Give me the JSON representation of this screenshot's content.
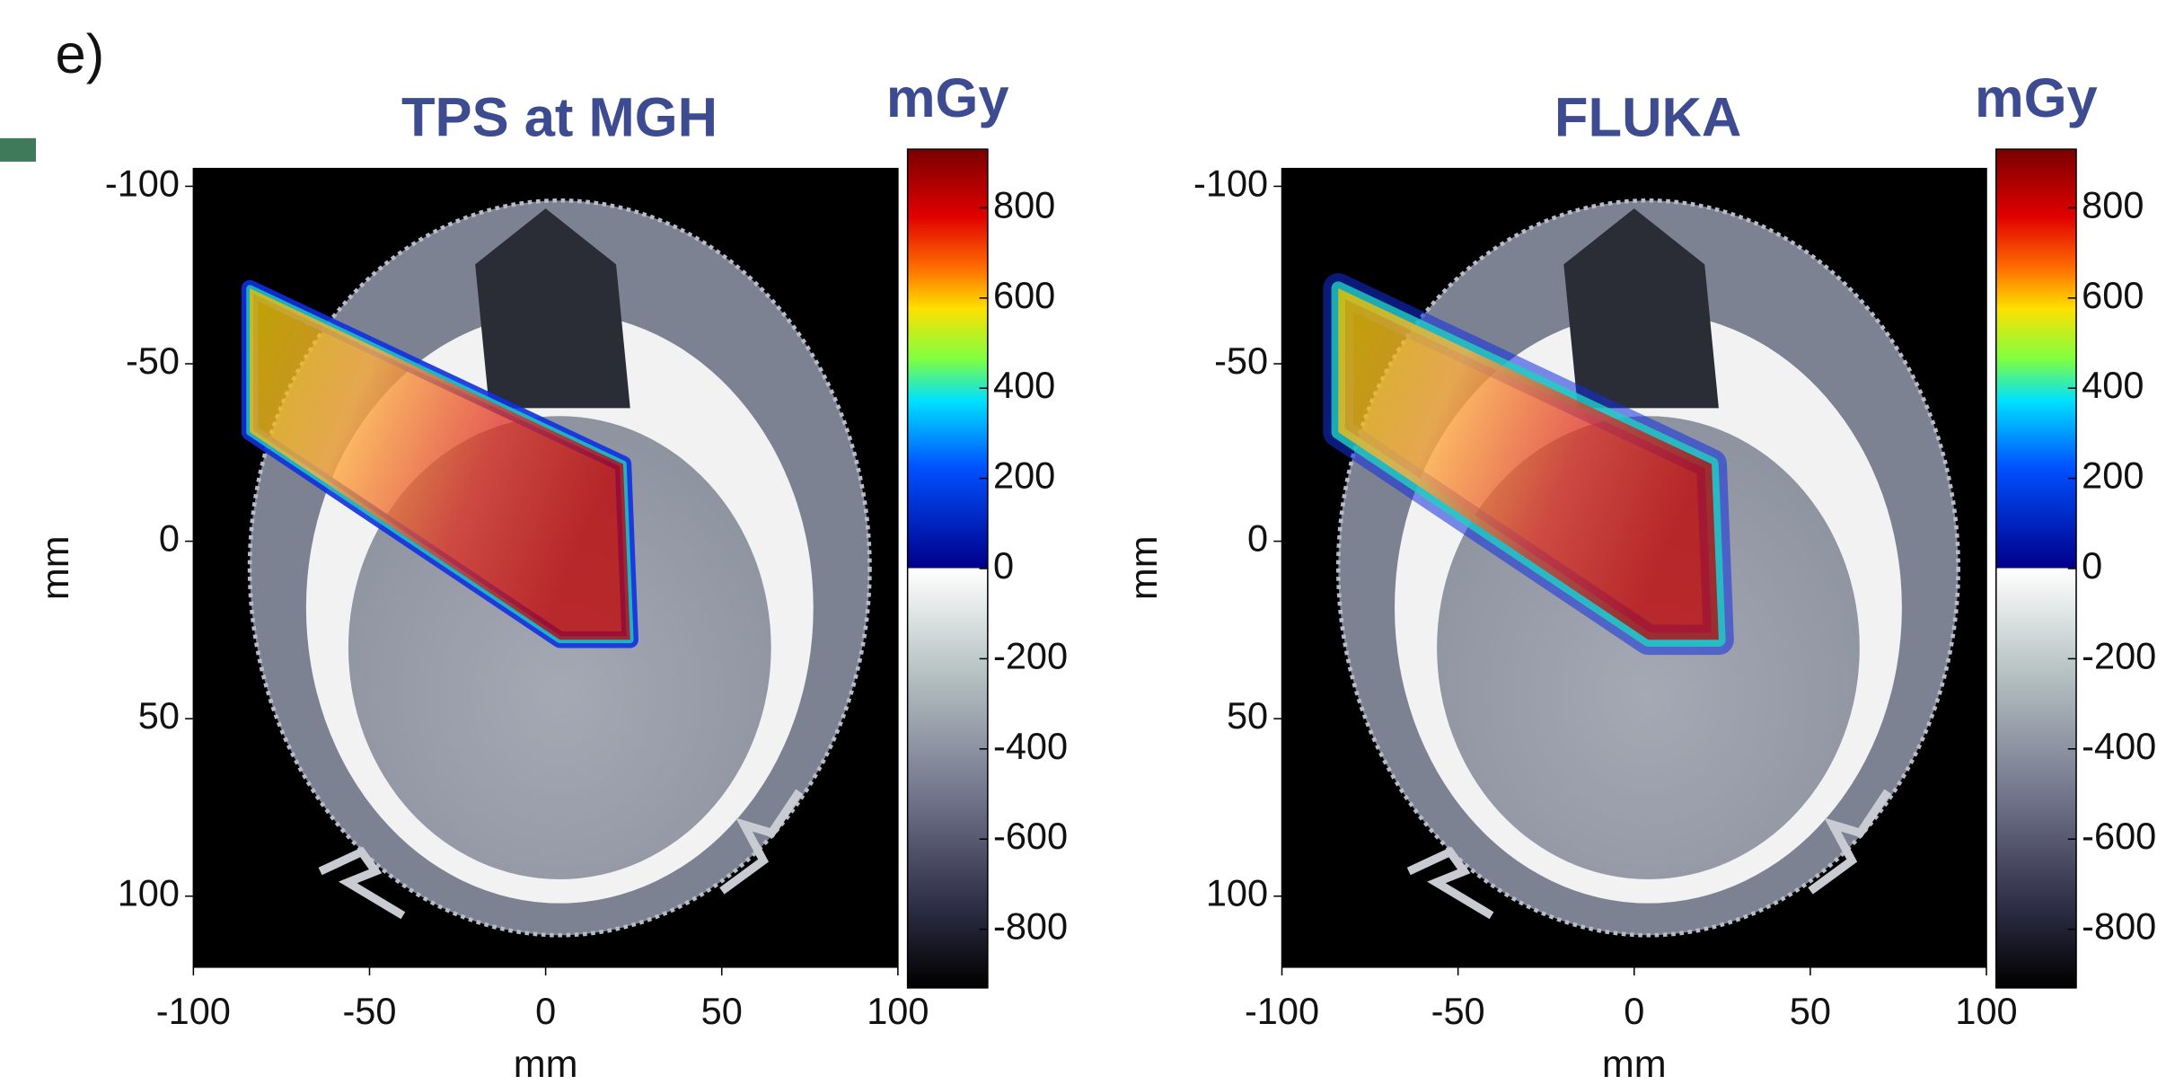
{
  "panel_label": "e)",
  "chart_data": [
    {
      "type": "heatmap",
      "title": "TPS at MGH",
      "xlabel": "mm",
      "ylabel": "mm",
      "xlim": [
        -100,
        100
      ],
      "ylim": [
        -105,
        120
      ],
      "y_inverted": true,
      "xticks": [
        -100,
        -50,
        0,
        50,
        100
      ],
      "yticks": [
        -100,
        -50,
        0,
        50,
        100
      ],
      "colorbar": {
        "label": "mGy",
        "lim": [
          -930,
          930
        ],
        "ticks": [
          -800,
          -600,
          -400,
          -200,
          0,
          200,
          400,
          600,
          800
        ]
      }
    },
    {
      "type": "heatmap",
      "title": "FLUKA",
      "xlabel": "mm",
      "ylabel": "mm",
      "xlim": [
        -100,
        100
      ],
      "ylim": [
        -105,
        120
      ],
      "y_inverted": true,
      "xticks": [
        -100,
        -50,
        0,
        50,
        100
      ],
      "yticks": [
        -100,
        -50,
        0,
        50,
        100
      ],
      "colorbar": {
        "label": "mGy",
        "lim": [
          -930,
          930
        ],
        "ticks": [
          -800,
          -600,
          -400,
          -200,
          0,
          200,
          400,
          600,
          800
        ]
      }
    }
  ]
}
